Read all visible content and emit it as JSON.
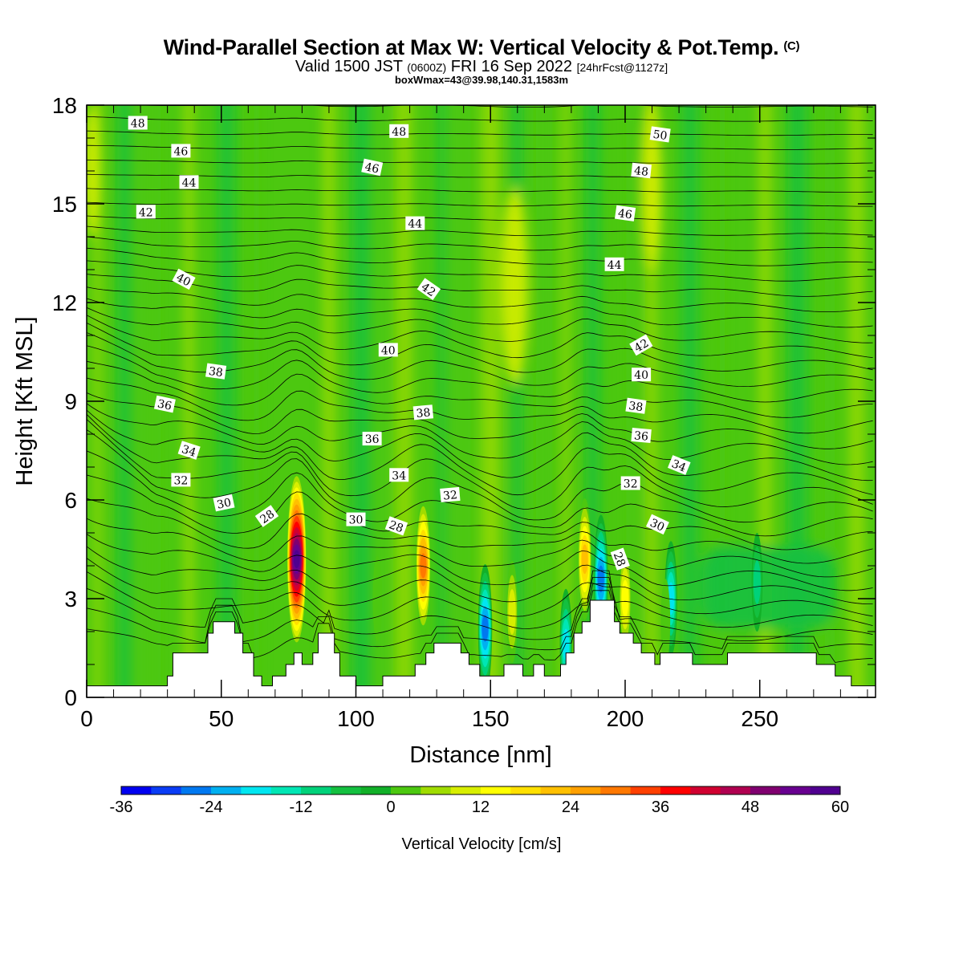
{
  "header": {
    "title": "Wind-Parallel Section at Max W: Vertical Velocity & Pot.Temp.",
    "copyright": "(C)",
    "valid_main": "Valid 1500 JST",
    "valid_utc": "(0600Z)",
    "valid_date": "FRI 16 Sep 2022",
    "forecast": "[24hrFcst@1127z]",
    "box_info": "boxWmax=43@39.98,140.31,1583m"
  },
  "chart_data": {
    "type": "heatmap",
    "xlabel": "Distance [nm]",
    "ylabel": "Height [Kft MSL]",
    "xlim": [
      0,
      293
    ],
    "ylim": [
      0,
      18
    ],
    "xticks": [
      0,
      50,
      100,
      150,
      200,
      250
    ],
    "yticks": [
      0,
      3,
      6,
      9,
      12,
      15,
      18
    ],
    "colorbar": {
      "label": "Vertical Velocity [cm/s]",
      "min": -36,
      "max": 60,
      "step": 4,
      "tick_labels": [
        "-36",
        "-24",
        "-12",
        "0",
        "12",
        "24",
        "36",
        "48",
        "60"
      ],
      "colors": [
        "#0000f0",
        "#0a3cf5",
        "#0078f0",
        "#00b0f0",
        "#00e6f0",
        "#00e6b4",
        "#00d27a",
        "#14c040",
        "#12b028",
        "#4cc810",
        "#a0dc00",
        "#d8ee00",
        "#ffff00",
        "#ffe000",
        "#ffc000",
        "#ffa000",
        "#ff7800",
        "#ff4000",
        "#ff0000",
        "#d00030",
        "#b00050",
        "#800070",
        "#680090",
        "#500090"
      ]
    },
    "terrain_profile_kft": [
      [
        0,
        0.35
      ],
      [
        30,
        0.35
      ],
      [
        30,
        0.65
      ],
      [
        32,
        0.65
      ],
      [
        32,
        1.35
      ],
      [
        45,
        1.35
      ],
      [
        45,
        1.95
      ],
      [
        47,
        1.95
      ],
      [
        47,
        2.3
      ],
      [
        55,
        2.3
      ],
      [
        55,
        1.95
      ],
      [
        58,
        1.95
      ],
      [
        58,
        1.35
      ],
      [
        62,
        1.35
      ],
      [
        62,
        0.65
      ],
      [
        65,
        0.65
      ],
      [
        65,
        0.35
      ],
      [
        69,
        0.35
      ],
      [
        69,
        0.65
      ],
      [
        74,
        0.65
      ],
      [
        74,
        1.0
      ],
      [
        77,
        1.0
      ],
      [
        77,
        1.35
      ],
      [
        80,
        1.35
      ],
      [
        80,
        1.0
      ],
      [
        84,
        1.0
      ],
      [
        84,
        1.35
      ],
      [
        86,
        1.35
      ],
      [
        86,
        1.95
      ],
      [
        92,
        1.95
      ],
      [
        92,
        1.35
      ],
      [
        94,
        1.35
      ],
      [
        94,
        0.65
      ],
      [
        100,
        0.65
      ],
      [
        100,
        0.35
      ],
      [
        110,
        0.35
      ],
      [
        110,
        0.65
      ],
      [
        122,
        0.65
      ],
      [
        122,
        1.0
      ],
      [
        126,
        1.0
      ],
      [
        126,
        1.35
      ],
      [
        129,
        1.35
      ],
      [
        129,
        1.65
      ],
      [
        139,
        1.65
      ],
      [
        139,
        1.35
      ],
      [
        142,
        1.35
      ],
      [
        142,
        1.0
      ],
      [
        146,
        1.0
      ],
      [
        146,
        0.65
      ],
      [
        155,
        0.65
      ],
      [
        155,
        1.0
      ],
      [
        162,
        1.0
      ],
      [
        162,
        0.65
      ],
      [
        166,
        0.65
      ],
      [
        166,
        1.0
      ],
      [
        170,
        1.0
      ],
      [
        170,
        0.65
      ],
      [
        176,
        0.65
      ],
      [
        176,
        1.0
      ],
      [
        178,
        1.0
      ],
      [
        178,
        1.35
      ],
      [
        181,
        1.35
      ],
      [
        181,
        1.95
      ],
      [
        184,
        1.95
      ],
      [
        184,
        2.3
      ],
      [
        187,
        2.3
      ],
      [
        187,
        2.95
      ],
      [
        196,
        2.95
      ],
      [
        196,
        2.3
      ],
      [
        198,
        2.3
      ],
      [
        198,
        1.95
      ],
      [
        203,
        1.95
      ],
      [
        203,
        1.65
      ],
      [
        206,
        1.65
      ],
      [
        206,
        1.35
      ],
      [
        211,
        1.35
      ],
      [
        211,
        1.0
      ],
      [
        213,
        1.0
      ],
      [
        213,
        1.35
      ],
      [
        225,
        1.35
      ],
      [
        225,
        1.0
      ],
      [
        238,
        1.0
      ],
      [
        238,
        1.35
      ],
      [
        271,
        1.35
      ],
      [
        271,
        1.0
      ],
      [
        278,
        1.0
      ],
      [
        278,
        0.65
      ],
      [
        284,
        0.65
      ],
      [
        284,
        0.35
      ],
      [
        293,
        0.35
      ]
    ],
    "updraft_cores": [
      {
        "x": 78,
        "y": 4.2,
        "w": 60
      },
      {
        "x": 125,
        "y": 4.0,
        "w": 34
      },
      {
        "x": 185,
        "y": 4.2,
        "w": 26
      },
      {
        "x": 200,
        "y": 3.0,
        "w": 18
      },
      {
        "x": 158,
        "y": 2.6,
        "w": 14
      },
      {
        "x": 108,
        "y": 3.0,
        "w": 4
      },
      {
        "x": 215,
        "y": 2.3,
        "w": 4
      }
    ],
    "downdraft_cores": [
      {
        "x": 148,
        "y": 2.1,
        "w": -30
      },
      {
        "x": 191,
        "y": 3.6,
        "w": -30
      },
      {
        "x": 217,
        "y": 3.0,
        "w": -22
      },
      {
        "x": 178,
        "y": 1.6,
        "w": -20
      },
      {
        "x": 249,
        "y": 3.5,
        "w": -12
      }
    ],
    "theta_labels": [
      {
        "x": 19,
        "y": 17.45,
        "text": "48",
        "rot": 0
      },
      {
        "x": 116,
        "y": 17.2,
        "text": "48",
        "rot": 0
      },
      {
        "x": 213,
        "y": 17.1,
        "text": "50",
        "rot": 8
      },
      {
        "x": 35,
        "y": 16.6,
        "text": "46",
        "rot": 0
      },
      {
        "x": 106,
        "y": 16.1,
        "text": "46",
        "rot": 12
      },
      {
        "x": 206,
        "y": 16.0,
        "text": "48",
        "rot": 6
      },
      {
        "x": 38,
        "y": 15.65,
        "text": "44",
        "rot": 0
      },
      {
        "x": 22,
        "y": 14.75,
        "text": "42",
        "rot": 0
      },
      {
        "x": 122,
        "y": 14.4,
        "text": "44",
        "rot": 0
      },
      {
        "x": 200,
        "y": 14.7,
        "text": "46",
        "rot": 8
      },
      {
        "x": 196,
        "y": 13.15,
        "text": "44",
        "rot": 0
      },
      {
        "x": 36,
        "y": 12.7,
        "text": "40",
        "rot": 28
      },
      {
        "x": 127,
        "y": 12.4,
        "text": "42",
        "rot": 35
      },
      {
        "x": 206,
        "y": 10.7,
        "text": "42",
        "rot": -30
      },
      {
        "x": 112,
        "y": 10.55,
        "text": "40",
        "rot": 0
      },
      {
        "x": 48,
        "y": 9.9,
        "text": "38",
        "rot": 8
      },
      {
        "x": 206,
        "y": 9.8,
        "text": "40",
        "rot": 0
      },
      {
        "x": 29,
        "y": 8.9,
        "text": "36",
        "rot": 12
      },
      {
        "x": 125,
        "y": 8.65,
        "text": "38",
        "rot": -5
      },
      {
        "x": 204,
        "y": 8.85,
        "text": "38",
        "rot": 8
      },
      {
        "x": 106,
        "y": 7.85,
        "text": "36",
        "rot": 0
      },
      {
        "x": 206,
        "y": 7.95,
        "text": "36",
        "rot": 5
      },
      {
        "x": 38,
        "y": 7.5,
        "text": "34",
        "rot": 18
      },
      {
        "x": 220,
        "y": 7.05,
        "text": "34",
        "rot": 22
      },
      {
        "x": 116,
        "y": 6.75,
        "text": "34",
        "rot": 0
      },
      {
        "x": 35,
        "y": 6.6,
        "text": "32",
        "rot": 0
      },
      {
        "x": 202,
        "y": 6.5,
        "text": "32",
        "rot": 0
      },
      {
        "x": 135,
        "y": 6.15,
        "text": "32",
        "rot": -5
      },
      {
        "x": 51,
        "y": 5.9,
        "text": "30",
        "rot": -12
      },
      {
        "x": 67,
        "y": 5.5,
        "text": "28",
        "rot": -35
      },
      {
        "x": 100,
        "y": 5.4,
        "text": "30",
        "rot": 0
      },
      {
        "x": 115,
        "y": 5.2,
        "text": "28",
        "rot": 20
      },
      {
        "x": 212,
        "y": 5.25,
        "text": "30",
        "rot": 25
      },
      {
        "x": 198,
        "y": 4.2,
        "text": "28",
        "rot": 70
      }
    ]
  }
}
